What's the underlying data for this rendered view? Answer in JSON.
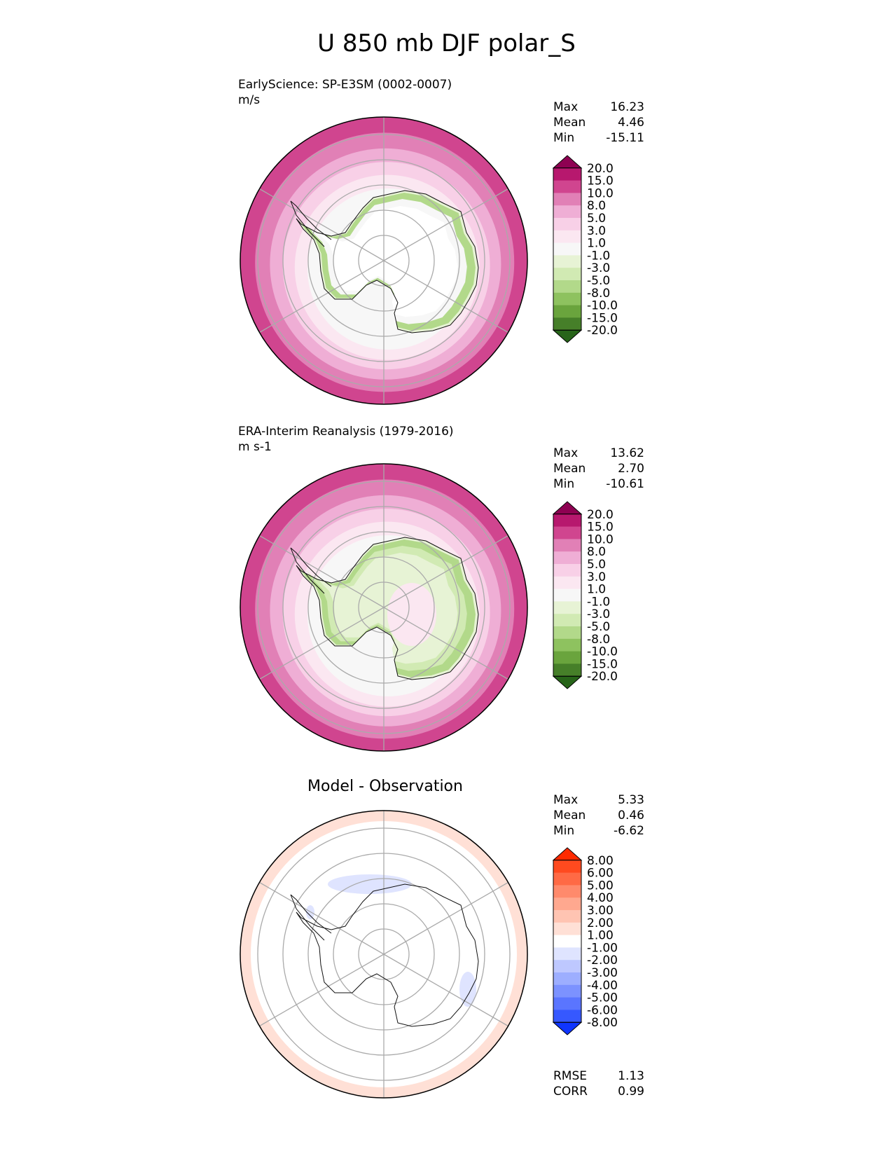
{
  "title": "U 850 mb DJF polar_S",
  "panels": [
    {
      "id": "test",
      "line1": "EarlyScience: SP-E3SM (0002-0007)",
      "line2": "m/s",
      "stats": [
        {
          "label": "Max",
          "value": "16.23"
        },
        {
          "label": "Mean",
          "value": "4.46"
        },
        {
          "label": "Min",
          "value": "-15.11"
        }
      ]
    },
    {
      "id": "ref",
      "line1": "ERA-Interim Reanalysis (1979-2016)",
      "line2": "m s-1",
      "stats": [
        {
          "label": "Max",
          "value": "13.62"
        },
        {
          "label": "Mean",
          "value": "2.70"
        },
        {
          "label": "Min",
          "value": "-10.61"
        }
      ]
    },
    {
      "id": "diff",
      "center_title": "Model - Observation",
      "stats": [
        {
          "label": "Max",
          "value": "5.33"
        },
        {
          "label": "Mean",
          "value": "0.46"
        },
        {
          "label": "Min",
          "value": "-6.62"
        }
      ],
      "metrics": [
        {
          "label": "RMSE",
          "value": "1.13"
        },
        {
          "label": "CORR",
          "value": "0.99"
        }
      ]
    }
  ],
  "chart_data": [
    {
      "type": "heatmap",
      "projection": "south-polar-stereographic",
      "variable": "U 850 mb",
      "colorbar": {
        "extend": "both",
        "levels": [
          "20.0",
          "15.0",
          "10.0",
          "8.0",
          "5.0",
          "3.0",
          "1.0",
          "-1.0",
          "-3.0",
          "-5.0",
          "-8.0",
          "-10.0",
          "-15.0",
          "-20.0"
        ],
        "colors": [
          "#8e0152",
          "#b7186e",
          "#d0458f",
          "#e180b6",
          "#efaed5",
          "#f8d0e7",
          "#fbe7f1",
          "#f7f7f7",
          "#e7f3d5",
          "#d1eab3",
          "#b2d98a",
          "#8ec25f",
          "#6aa43d",
          "#467f29",
          "#276419"
        ]
      },
      "stats": {
        "max": 16.23,
        "mean": 4.46,
        "min": -15.11
      }
    },
    {
      "type": "heatmap",
      "projection": "south-polar-stereographic",
      "variable": "U 850 mb",
      "colorbar": {
        "extend": "both",
        "levels": [
          "20.0",
          "15.0",
          "10.0",
          "8.0",
          "5.0",
          "3.0",
          "1.0",
          "-1.0",
          "-3.0",
          "-5.0",
          "-8.0",
          "-10.0",
          "-15.0",
          "-20.0"
        ],
        "colors": [
          "#8e0152",
          "#b7186e",
          "#d0458f",
          "#e180b6",
          "#efaed5",
          "#f8d0e7",
          "#fbe7f1",
          "#f7f7f7",
          "#e7f3d5",
          "#d1eab3",
          "#b2d98a",
          "#8ec25f",
          "#6aa43d",
          "#467f29",
          "#276419"
        ]
      },
      "stats": {
        "max": 13.62,
        "mean": 2.7,
        "min": -10.61
      }
    },
    {
      "type": "heatmap",
      "projection": "south-polar-stereographic",
      "variable": "U 850 mb difference",
      "colorbar": {
        "extend": "both",
        "levels": [
          "8.00",
          "6.00",
          "5.00",
          "4.00",
          "3.00",
          "2.00",
          "1.00",
          "-1.00",
          "-2.00",
          "-3.00",
          "-4.00",
          "-5.00",
          "-6.00",
          "-8.00"
        ],
        "colors": [
          "#ff2a00",
          "#ff4a1f",
          "#ff6a45",
          "#ff8a6c",
          "#ffa88f",
          "#ffc4b2",
          "#ffe0d6",
          "#ffffff",
          "#dfe4ff",
          "#bec8ff",
          "#9daeff",
          "#7c92ff",
          "#5a75ff",
          "#3658ff",
          "#0f35ff"
        ]
      },
      "stats": {
        "max": 5.33,
        "mean": 0.46,
        "min": -6.62,
        "rmse": 1.13,
        "corr": 0.99
      }
    }
  ]
}
